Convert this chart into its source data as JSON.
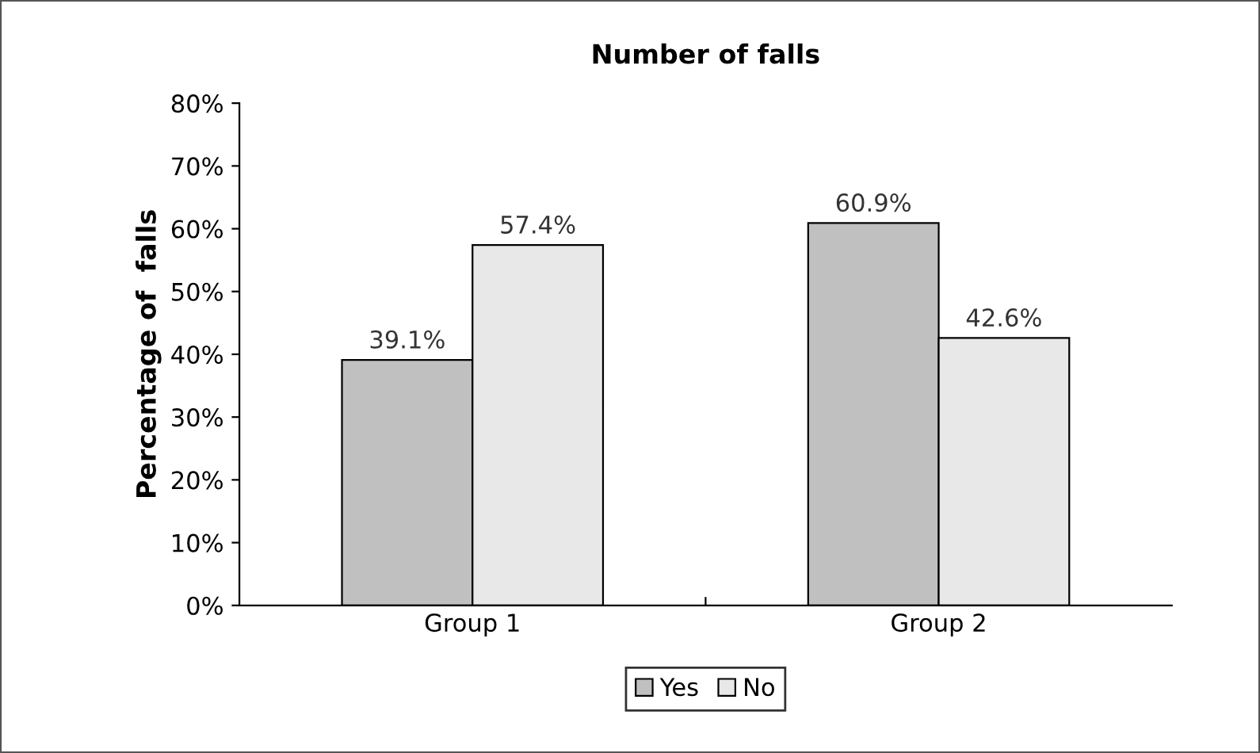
{
  "chart_data": {
    "type": "bar",
    "title": "Number of falls",
    "ylabel": "Percentage of  falls",
    "categories": [
      "Group 1",
      "Group 2"
    ],
    "series": [
      {
        "name": "Yes",
        "color": "#c0c0c0",
        "values": [
          39.1,
          60.9
        ],
        "value_labels": [
          "39.1%",
          "60.9%"
        ]
      },
      {
        "name": "No",
        "color": "#e8e8e8",
        "values": [
          57.4,
          42.6
        ],
        "value_labels": [
          "57.4%",
          "42.6%"
        ]
      }
    ],
    "ylim": [
      0,
      80
    ],
    "yticks": [
      {
        "value": 0,
        "label": "0%"
      },
      {
        "value": 10,
        "label": "10%"
      },
      {
        "value": 20,
        "label": "20%"
      },
      {
        "value": 30,
        "label": "30%"
      },
      {
        "value": 40,
        "label": "40%"
      },
      {
        "value": 50,
        "label": "50%"
      },
      {
        "value": 60,
        "label": "60%"
      },
      {
        "value": 70,
        "label": "70%"
      },
      {
        "value": 80,
        "label": "80%"
      }
    ],
    "grid": false,
    "legend": "bottom"
  }
}
